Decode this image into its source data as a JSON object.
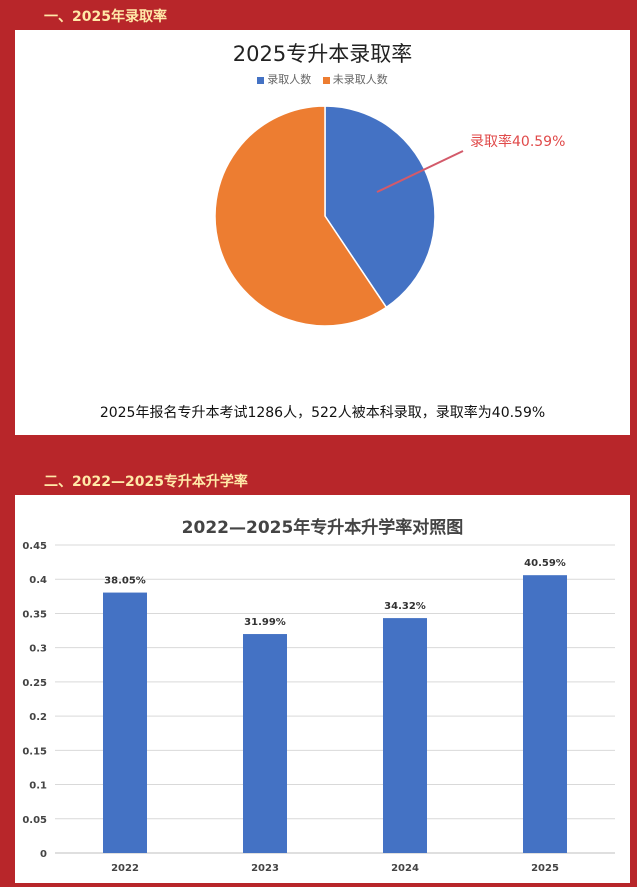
{
  "sections": {
    "pie_heading": "一、2025年录取率",
    "bar_heading": "二、2022—2025专升本升学率"
  },
  "pie_caption": "2025年报名专升本考试1286人，522人被本科录取，录取率为40.59%",
  "colors": {
    "page_bg": "#b8262a",
    "heading": "#ffe9a8",
    "admitted": "#4472c4",
    "not_admitted": "#ed7d31",
    "annotation": "#e04a4a"
  },
  "chart_data": [
    {
      "type": "pie",
      "title": "2025专升本录取率",
      "legend_position": "top",
      "labels": [
        "录取人数",
        "未录取人数"
      ],
      "values": [
        0.4059,
        0.5941
      ],
      "annotation": "录取率40.59%"
    },
    {
      "type": "bar",
      "title": "2022—2025年专升本升学率对照图",
      "categories": [
        "2022",
        "2023",
        "2024",
        "2025"
      ],
      "values": [
        0.3805,
        0.3199,
        0.3432,
        0.4059
      ],
      "data_labels": [
        "38.05%",
        "31.99%",
        "34.32%",
        "40.59%"
      ],
      "ylim": [
        0,
        0.45
      ],
      "yticks": [
        "0",
        "0.05",
        "0.1",
        "0.15",
        "0.2",
        "0.25",
        "0.3",
        "0.35",
        "0.4",
        "0.45"
      ],
      "grid": true
    }
  ]
}
